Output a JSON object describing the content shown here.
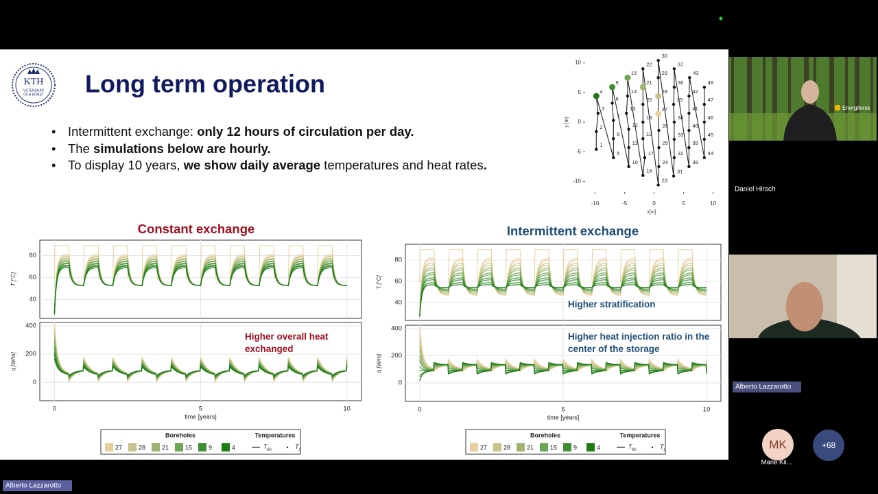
{
  "call": {
    "tiles": [
      {
        "name": "Daniel Hirsch",
        "logo": "Energiforsk"
      },
      {
        "name": "Alberto Lazzarotto"
      }
    ],
    "speaker": "Alberto Lazzarotto",
    "avatar": {
      "initials": "MK",
      "name": "Marie Kil..."
    },
    "more": "+68"
  },
  "slide": {
    "logo": {
      "text": "KTH",
      "motto": [
        "VETENSKAP",
        "OCH KONST"
      ]
    },
    "title": "Long term operation",
    "bullets": [
      [
        {
          "text": "Intermittent exchange: "
        },
        {
          "text": "only 12 hours of circulation per day.",
          "bold": true
        }
      ],
      [
        {
          "text": "The "
        },
        {
          "text": "simulations below are hourly.",
          "bold": true
        }
      ],
      [
        {
          "text": "To display 10 years, "
        },
        {
          "text": "we show daily average",
          "bold": true
        },
        {
          "text": " temperatures and heat rates"
        },
        {
          "text": ".",
          "bold": true
        }
      ]
    ],
    "network": {
      "xlabel": "x[m]",
      "ylabel": "y [m]",
      "xlim": [
        -11,
        10.5
      ],
      "ylim": [
        -11,
        11
      ],
      "xticks": [
        -10,
        -5,
        0,
        5,
        10
      ],
      "yticks": [
        -10,
        -5,
        0,
        5,
        10
      ],
      "nodes": [
        {
          "label": "1",
          "x": -9.8,
          "y": -4.6
        },
        {
          "label": "2",
          "x": -9.8,
          "y": -1.6
        },
        {
          "label": "3",
          "x": -9.5,
          "y": 1.5
        },
        {
          "label": "4",
          "x": -9.8,
          "y": 4.4,
          "color": "#1d7a14"
        },
        {
          "label": "5",
          "x": -6.9,
          "y": -6
        },
        {
          "label": "6",
          "x": -6.9,
          "y": -2.8
        },
        {
          "label": "7",
          "x": -6.9,
          "y": 0.3
        },
        {
          "label": "8",
          "x": -7.1,
          "y": 3.2
        },
        {
          "label": "9",
          "x": -7.1,
          "y": 5.9,
          "color": "#3f8f32"
        },
        {
          "label": "10",
          "x": -4.3,
          "y": -7.5
        },
        {
          "label": "11",
          "x": -4.3,
          "y": -4.3
        },
        {
          "label": "12",
          "x": -4.3,
          "y": -1.2
        },
        {
          "label": "13",
          "x": -4.7,
          "y": 1.5
        },
        {
          "label": "14",
          "x": -4.5,
          "y": 4.4
        },
        {
          "label": "15",
          "x": -4.5,
          "y": 7.5,
          "color": "#6aa653"
        },
        {
          "label": "16",
          "x": -1.9,
          "y": -9
        },
        {
          "label": "17",
          "x": -1.6,
          "y": -6
        },
        {
          "label": "18",
          "x": -1.9,
          "y": -2.8
        },
        {
          "label": "19",
          "x": -1.9,
          "y": 0
        },
        {
          "label": "20",
          "x": -1.9,
          "y": 3
        },
        {
          "label": "21",
          "x": -1.9,
          "y": 5.9,
          "color": "#9db56f"
        },
        {
          "label": "22",
          "x": -1.9,
          "y": 9
        },
        {
          "label": "23",
          "x": 0.7,
          "y": -10.6
        },
        {
          "label": "24",
          "x": 0.8,
          "y": -7.5
        },
        {
          "label": "25",
          "x": 0.8,
          "y": -4.3
        },
        {
          "label": "26",
          "x": 0.8,
          "y": -1.4
        },
        {
          "label": "27",
          "x": 0.7,
          "y": 1.4,
          "color": "#e9cf9e"
        },
        {
          "label": "28",
          "x": 0.7,
          "y": 4.4,
          "color": "#c9c48c"
        },
        {
          "label": "29",
          "x": 0.7,
          "y": 7.5
        },
        {
          "label": "30",
          "x": 0.7,
          "y": 10.4
        },
        {
          "label": "31",
          "x": 3.3,
          "y": -9.1
        },
        {
          "label": "32",
          "x": 3.4,
          "y": -6
        },
        {
          "label": "33",
          "x": 3.4,
          "y": -2.9
        },
        {
          "label": "34",
          "x": 3.4,
          "y": 0
        },
        {
          "label": "35",
          "x": 3.3,
          "y": 3
        },
        {
          "label": "36",
          "x": 3.4,
          "y": 5.9
        },
        {
          "label": "37",
          "x": 3.4,
          "y": 9
        },
        {
          "label": "38",
          "x": 5.9,
          "y": -7.5
        },
        {
          "label": "39",
          "x": 5.9,
          "y": -4.3
        },
        {
          "label": "40",
          "x": 5.9,
          "y": -1.4
        },
        {
          "label": "41",
          "x": 5.9,
          "y": 1.5
        },
        {
          "label": "42",
          "x": 5.9,
          "y": 4.4
        },
        {
          "label": "43",
          "x": 6,
          "y": 7.5
        },
        {
          "label": "44",
          "x": 8.5,
          "y": -6
        },
        {
          "label": "45",
          "x": 8.5,
          "y": -2.9
        },
        {
          "label": "46",
          "x": 8.5,
          "y": 0
        },
        {
          "label": "47",
          "x": 8.5,
          "y": 3
        },
        {
          "label": "48",
          "x": 8.5,
          "y": 5.9
        }
      ]
    },
    "panels": [
      {
        "title": "Constant exchange",
        "title_color": "#a01020",
        "xlabel": "time [years]",
        "xlim": [
          -0.5,
          10.5
        ],
        "xticks": [
          0,
          5,
          10
        ],
        "top": {
          "ylabel": "T [°C]",
          "ylim": [
            23,
            94
          ],
          "yticks": [
            40,
            60,
            80
          ]
        },
        "bottom": {
          "ylabel": "q [W/m]",
          "ylim": [
            -130,
            425
          ],
          "yticks": [
            0,
            200,
            400
          ],
          "annotation": "Higher overall heat exchanged",
          "annotation_color": "#a01020"
        }
      },
      {
        "title": "Intermittent exchange",
        "title_color": "#1f4e79",
        "xlabel": "time [years]",
        "xlim": [
          -0.5,
          10.5
        ],
        "xticks": [
          0,
          5,
          10
        ],
        "top": {
          "ylabel": "T [°C]",
          "ylim": [
            23,
            95
          ],
          "yticks": [
            40,
            60,
            80
          ],
          "annotation": "Higher stratification",
          "annotation_color": "#1f4e79"
        },
        "bottom": {
          "ylabel": "q [W/m]",
          "ylim": [
            -137,
            425
          ],
          "yticks": [
            0,
            200,
            400
          ],
          "annotation": "Higher heat injection ratio in the center of the storage",
          "annotation_color": "#1f4e79"
        }
      }
    ],
    "legend": {
      "boreholes_title": "Boreholes",
      "temperatures_title": "Temperatures",
      "boreholes": [
        {
          "name": "27",
          "color": "#e9cf9e"
        },
        {
          "name": "28",
          "color": "#c9c48c"
        },
        {
          "name": "21",
          "color": "#9db56f"
        },
        {
          "name": "15",
          "color": "#6aa653"
        },
        {
          "name": "9",
          "color": "#3f8f32"
        },
        {
          "name": "4",
          "color": "#1d7a14"
        }
      ],
      "temperatures": [
        {
          "symbol": "T",
          "sub": "fin"
        },
        {
          "symbol": "T",
          "sub": "s"
        }
      ]
    }
  }
}
